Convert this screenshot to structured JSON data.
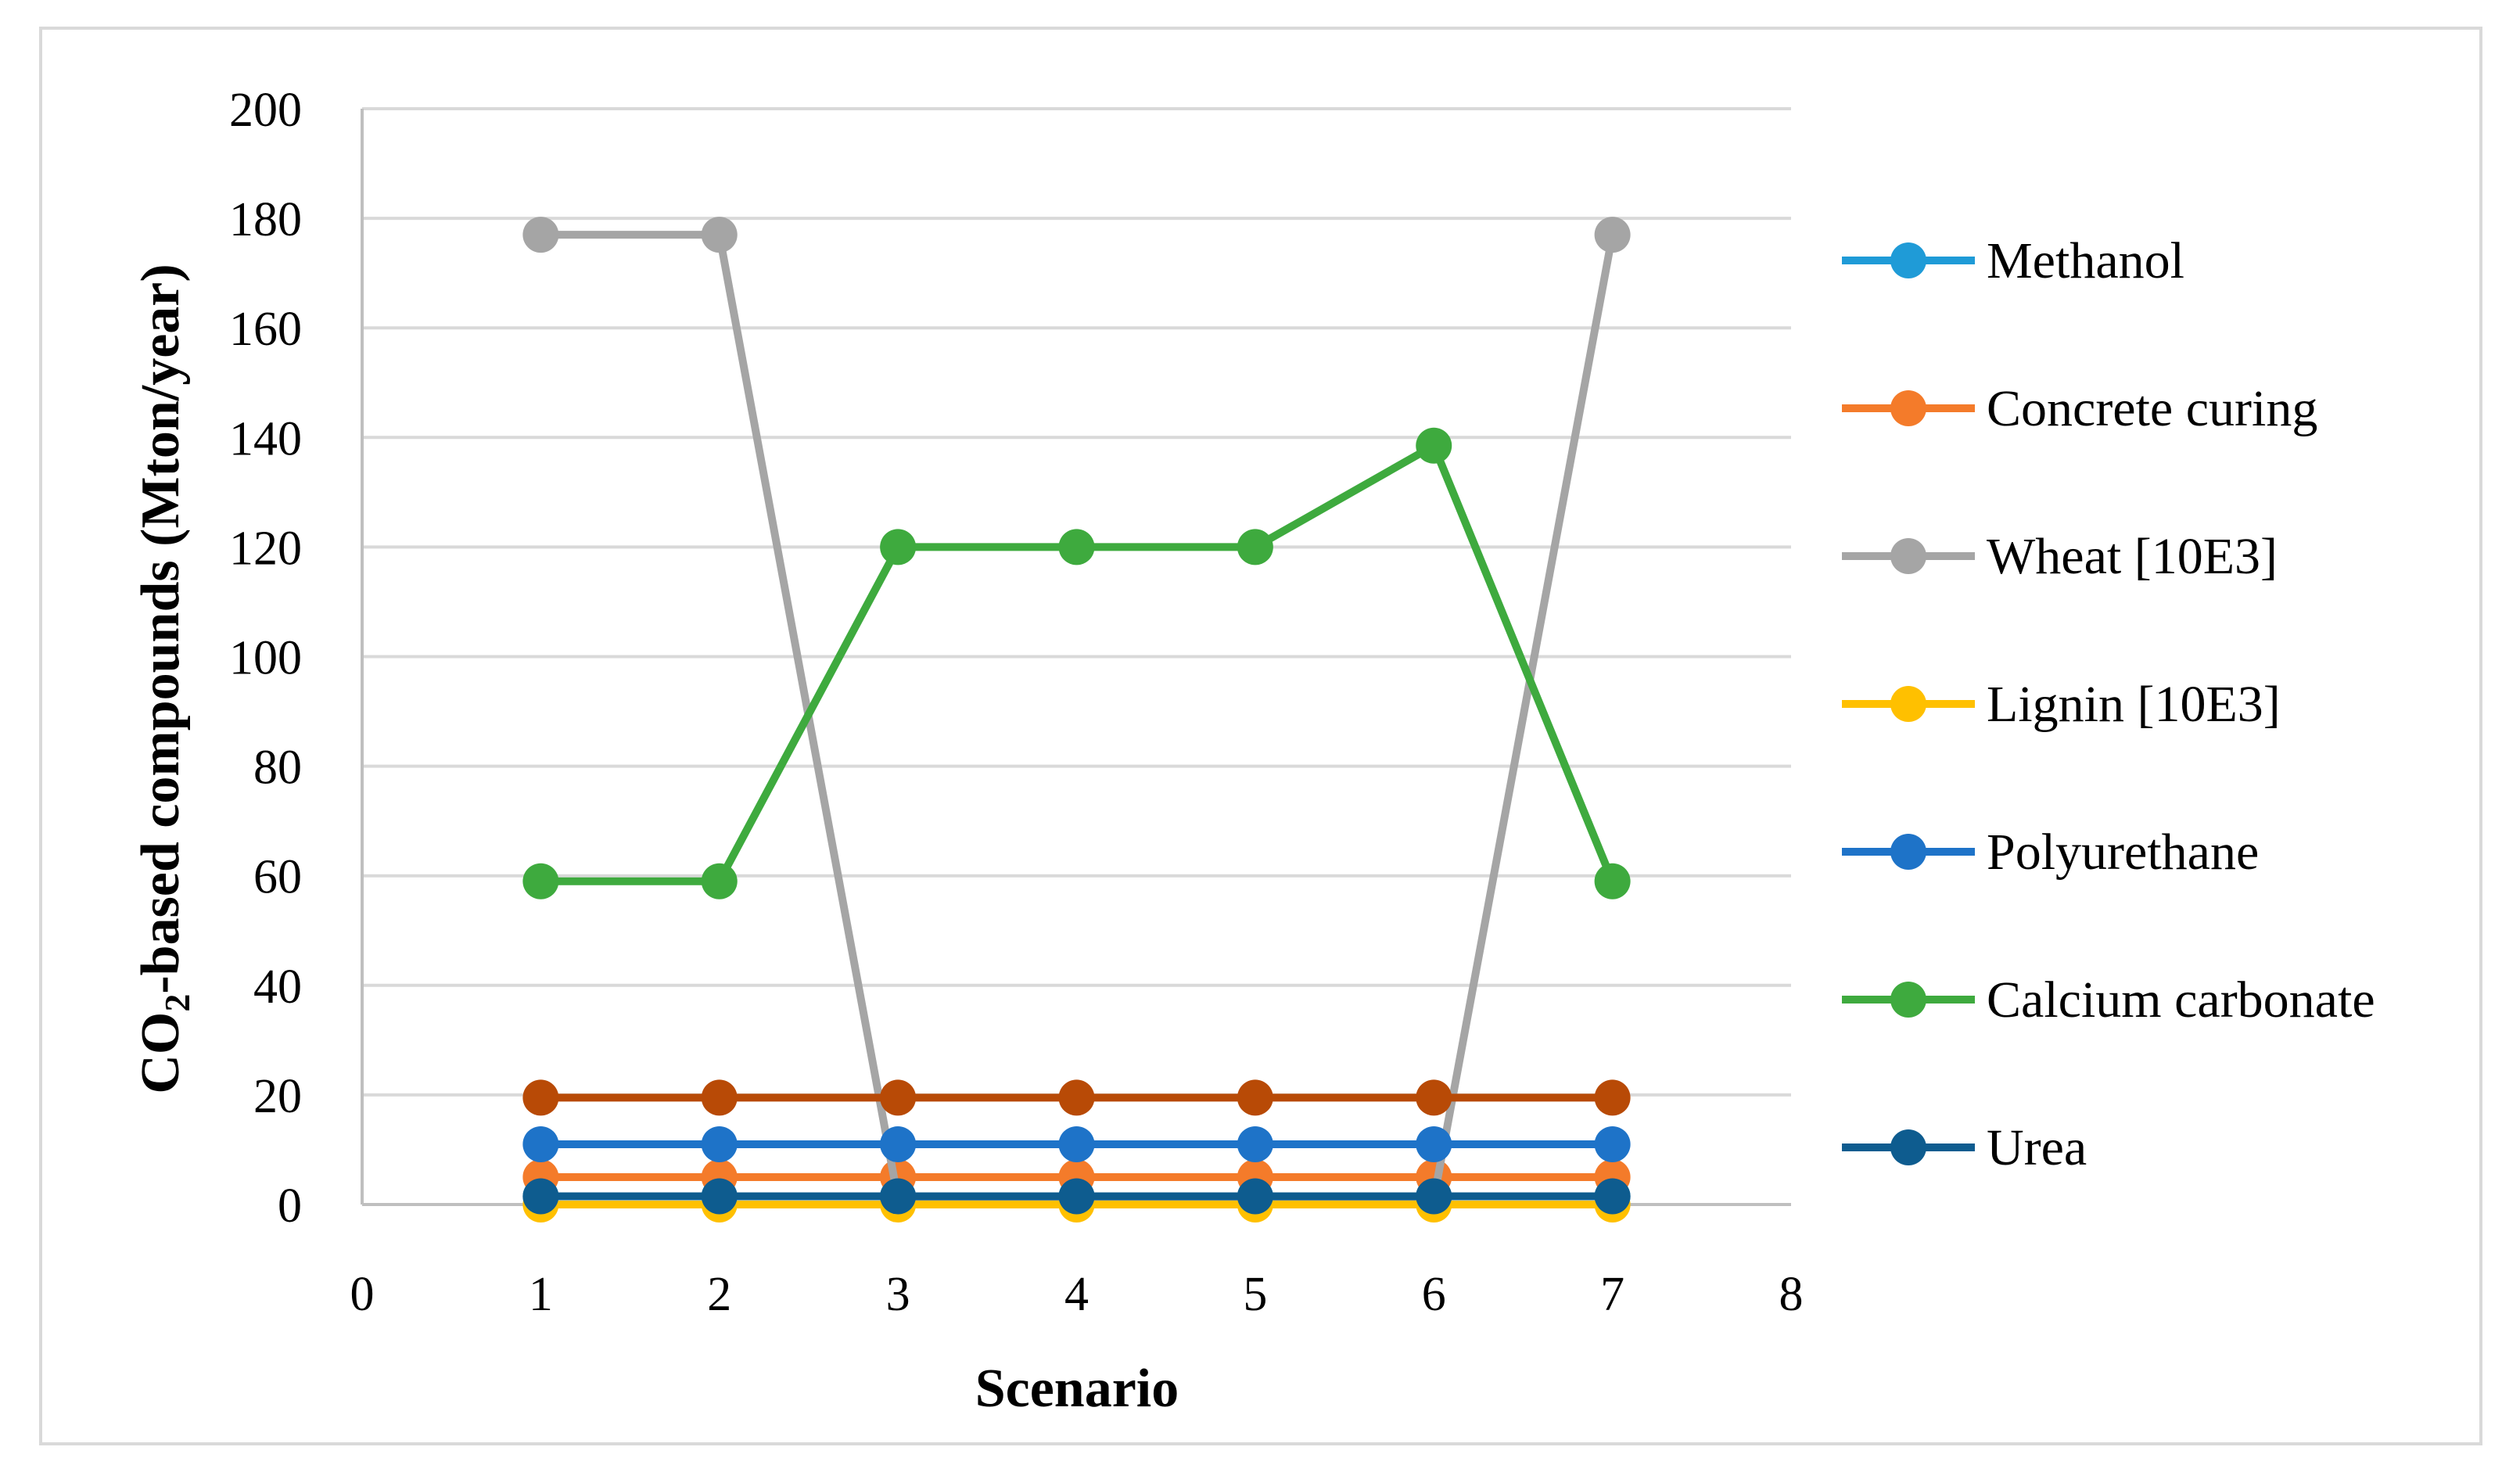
{
  "chart_data": {
    "type": "line",
    "title": "",
    "xlabel": "Scenario",
    "ylabel_parts": [
      "CO",
      "2",
      "-based compounds (Mton/year)"
    ],
    "xlim": [
      0,
      8
    ],
    "ylim": [
      0,
      200
    ],
    "x_ticks": [
      "0",
      "1",
      "2",
      "3",
      "4",
      "5",
      "6",
      "7",
      "8"
    ],
    "y_ticks": [
      "0",
      "20",
      "40",
      "60",
      "80",
      "100",
      "120",
      "140",
      "160",
      "180",
      "200"
    ],
    "grid": "horizontal",
    "legend_position": "right",
    "x": [
      1,
      2,
      3,
      4,
      5,
      6,
      7
    ],
    "series": [
      {
        "name": "Methanol",
        "color": "#1F9BD7",
        "values": [
          1.5,
          1.5,
          1.5,
          1.5,
          1.5,
          1.5,
          1.5
        ],
        "legend": true
      },
      {
        "name": "Concrete curing",
        "color": "#F47B2A",
        "values": [
          5,
          5,
          5,
          5,
          5,
          5,
          5
        ],
        "legend": true
      },
      {
        "name": "Wheat [10E3]",
        "color": "#A5A5A5",
        "values": [
          177,
          177,
          1,
          1,
          1,
          1,
          177
        ],
        "legend": true
      },
      {
        "name": "Lignin [10E3]",
        "color": "#FFC000",
        "values": [
          0,
          0,
          0,
          0,
          0,
          0,
          0
        ],
        "legend": true
      },
      {
        "name": "Polyurethane",
        "color": "#1E73C8",
        "values": [
          11,
          11,
          11,
          11,
          11,
          11,
          11
        ],
        "legend": true
      },
      {
        "name": "Calcium carbonate",
        "color": "#3EAA3E",
        "values": [
          59,
          59,
          120,
          120,
          120,
          138.5,
          59
        ],
        "legend": true
      },
      {
        "name": "",
        "color": "#B84A06",
        "values": [
          19.5,
          19.5,
          19.5,
          19.5,
          19.5,
          19.5,
          19.5
        ],
        "legend": false
      },
      {
        "name": "Urea",
        "color": "#0E5C8F",
        "values": [
          1.5,
          1.5,
          1.5,
          1.5,
          1.5,
          1.5,
          1.5
        ],
        "legend": true
      }
    ]
  }
}
